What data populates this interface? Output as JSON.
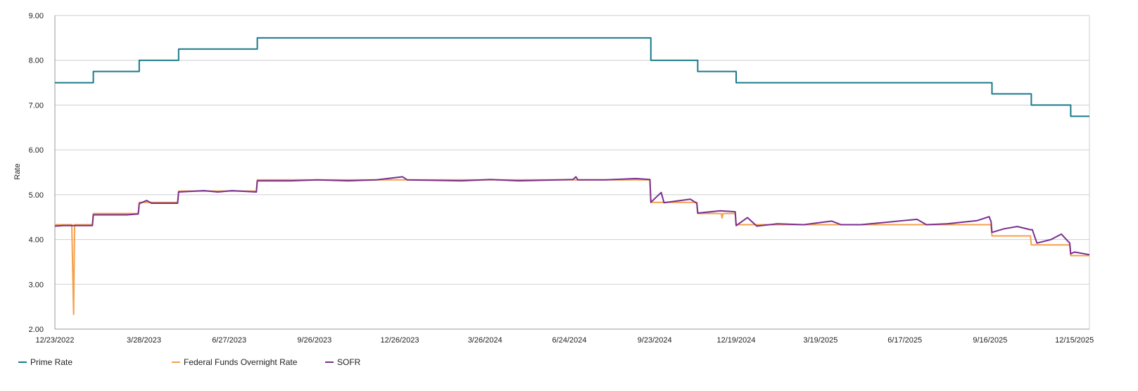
{
  "chart_data": {
    "type": "line",
    "title": "",
    "xlabel": "",
    "ylabel": "Rate",
    "ylim": [
      2,
      9
    ],
    "yticks": [
      "2.00",
      "3.00",
      "4.00",
      "5.00",
      "6.00",
      "7.00",
      "8.00",
      "9.00"
    ],
    "x_range": [
      "2022-12-23",
      "2025-12-31"
    ],
    "xticks": [
      {
        "date": "2022-12-23",
        "label": "12/23/2022"
      },
      {
        "date": "2023-03-28",
        "label": "3/28/2023"
      },
      {
        "date": "2023-06-27",
        "label": "6/27/2023"
      },
      {
        "date": "2023-09-26",
        "label": "9/26/2023"
      },
      {
        "date": "2023-12-26",
        "label": "12/26/2023"
      },
      {
        "date": "2024-03-26",
        "label": "3/26/2024"
      },
      {
        "date": "2024-06-24",
        "label": "6/24/2024"
      },
      {
        "date": "2024-09-23",
        "label": "9/23/2024"
      },
      {
        "date": "2024-12-19",
        "label": "12/19/2024"
      },
      {
        "date": "2025-03-19",
        "label": "3/19/2025"
      },
      {
        "date": "2025-06-17",
        "label": "6/17/2025"
      },
      {
        "date": "2025-09-16",
        "label": "9/16/2025"
      },
      {
        "date": "2025-12-15",
        "label": "12/15/2025"
      }
    ],
    "grid": true,
    "legend_position": "bottom-left",
    "series": [
      {
        "name": "Prime Rate",
        "color": "#1a7a8a",
        "step": true,
        "points": [
          [
            "2022-12-23",
            7.5
          ],
          [
            "2023-02-02",
            7.75
          ],
          [
            "2023-03-23",
            8.0
          ],
          [
            "2023-05-04",
            8.25
          ],
          [
            "2023-07-27",
            8.5
          ],
          [
            "2024-09-19",
            8.0
          ],
          [
            "2024-11-08",
            7.75
          ],
          [
            "2024-12-19",
            7.5
          ],
          [
            "2025-09-18",
            7.25
          ],
          [
            "2025-10-30",
            7.0
          ],
          [
            "2025-12-11",
            6.75
          ],
          [
            "2025-12-31",
            6.75
          ]
        ]
      },
      {
        "name": "Federal Funds Overnight Rate",
        "color": "#f5a04a",
        "step": false,
        "points": [
          [
            "2022-12-23",
            4.33
          ],
          [
            "2022-12-30",
            4.33
          ],
          [
            "2023-01-03",
            4.33
          ],
          [
            "2023-01-10",
            4.33
          ],
          [
            "2023-01-12",
            2.33
          ],
          [
            "2023-01-13",
            4.33
          ],
          [
            "2023-02-01",
            4.33
          ],
          [
            "2023-02-02",
            4.58
          ],
          [
            "2023-03-22",
            4.58
          ],
          [
            "2023-03-23",
            4.83
          ],
          [
            "2023-05-03",
            4.83
          ],
          [
            "2023-05-04",
            5.08
          ],
          [
            "2023-07-26",
            5.08
          ],
          [
            "2023-07-27",
            5.33
          ],
          [
            "2024-09-18",
            5.33
          ],
          [
            "2024-09-19",
            4.83
          ],
          [
            "2024-11-07",
            4.83
          ],
          [
            "2024-11-08",
            4.58
          ],
          [
            "2024-12-03",
            4.58
          ],
          [
            "2024-12-04",
            4.48
          ],
          [
            "2024-12-05",
            4.58
          ],
          [
            "2024-12-18",
            4.58
          ],
          [
            "2024-12-19",
            4.33
          ],
          [
            "2025-09-17",
            4.33
          ],
          [
            "2025-09-18",
            4.08
          ],
          [
            "2025-10-29",
            4.08
          ],
          [
            "2025-10-30",
            3.88
          ],
          [
            "2025-12-10",
            3.88
          ],
          [
            "2025-12-11",
            3.64
          ],
          [
            "2025-12-31",
            3.64
          ]
        ]
      },
      {
        "name": "SOFR",
        "color": "#7a2f8f",
        "step": false,
        "points": [
          [
            "2022-12-23",
            4.3
          ],
          [
            "2023-01-01",
            4.31
          ],
          [
            "2023-01-15",
            4.31
          ],
          [
            "2023-02-01",
            4.31
          ],
          [
            "2023-02-02",
            4.55
          ],
          [
            "2023-02-20",
            4.55
          ],
          [
            "2023-03-10",
            4.55
          ],
          [
            "2023-03-22",
            4.57
          ],
          [
            "2023-03-23",
            4.8
          ],
          [
            "2023-03-31",
            4.87
          ],
          [
            "2023-04-05",
            4.81
          ],
          [
            "2023-05-03",
            4.81
          ],
          [
            "2023-05-04",
            5.06
          ],
          [
            "2023-05-31",
            5.09
          ],
          [
            "2023-06-15",
            5.06
          ],
          [
            "2023-06-30",
            5.09
          ],
          [
            "2023-07-26",
            5.06
          ],
          [
            "2023-07-27",
            5.31
          ],
          [
            "2023-09-01",
            5.31
          ],
          [
            "2023-09-29",
            5.33
          ],
          [
            "2023-11-01",
            5.31
          ],
          [
            "2023-12-01",
            5.33
          ],
          [
            "2023-12-29",
            5.4
          ],
          [
            "2024-01-03",
            5.33
          ],
          [
            "2024-03-01",
            5.31
          ],
          [
            "2024-04-01",
            5.34
          ],
          [
            "2024-05-01",
            5.31
          ],
          [
            "2024-06-28",
            5.34
          ],
          [
            "2024-07-01",
            5.4
          ],
          [
            "2024-07-03",
            5.33
          ],
          [
            "2024-08-01",
            5.33
          ],
          [
            "2024-09-03",
            5.36
          ],
          [
            "2024-09-18",
            5.34
          ],
          [
            "2024-09-19",
            4.83
          ],
          [
            "2024-09-30",
            5.05
          ],
          [
            "2024-10-03",
            4.82
          ],
          [
            "2024-10-31",
            4.9
          ],
          [
            "2024-11-07",
            4.81
          ],
          [
            "2024-11-08",
            4.59
          ],
          [
            "2024-12-02",
            4.64
          ],
          [
            "2024-12-18",
            4.62
          ],
          [
            "2024-12-19",
            4.31
          ],
          [
            "2024-12-31",
            4.49
          ],
          [
            "2025-01-10",
            4.3
          ],
          [
            "2025-02-01",
            4.35
          ],
          [
            "2025-03-01",
            4.33
          ],
          [
            "2025-03-31",
            4.41
          ],
          [
            "2025-04-10",
            4.33
          ],
          [
            "2025-05-01",
            4.33
          ],
          [
            "2025-06-30",
            4.45
          ],
          [
            "2025-07-10",
            4.33
          ],
          [
            "2025-08-01",
            4.35
          ],
          [
            "2025-09-02",
            4.42
          ],
          [
            "2025-09-15",
            4.51
          ],
          [
            "2025-09-17",
            4.4
          ],
          [
            "2025-09-18",
            4.16
          ],
          [
            "2025-10-01",
            4.24
          ],
          [
            "2025-10-15",
            4.29
          ],
          [
            "2025-10-29",
            4.22
          ],
          [
            "2025-10-31",
            4.22
          ],
          [
            "2025-11-05",
            3.92
          ],
          [
            "2025-11-20",
            4.0
          ],
          [
            "2025-12-01",
            4.12
          ],
          [
            "2025-12-10",
            3.92
          ],
          [
            "2025-12-11",
            3.68
          ],
          [
            "2025-12-15",
            3.72
          ],
          [
            "2025-12-31",
            3.66
          ]
        ]
      }
    ]
  }
}
